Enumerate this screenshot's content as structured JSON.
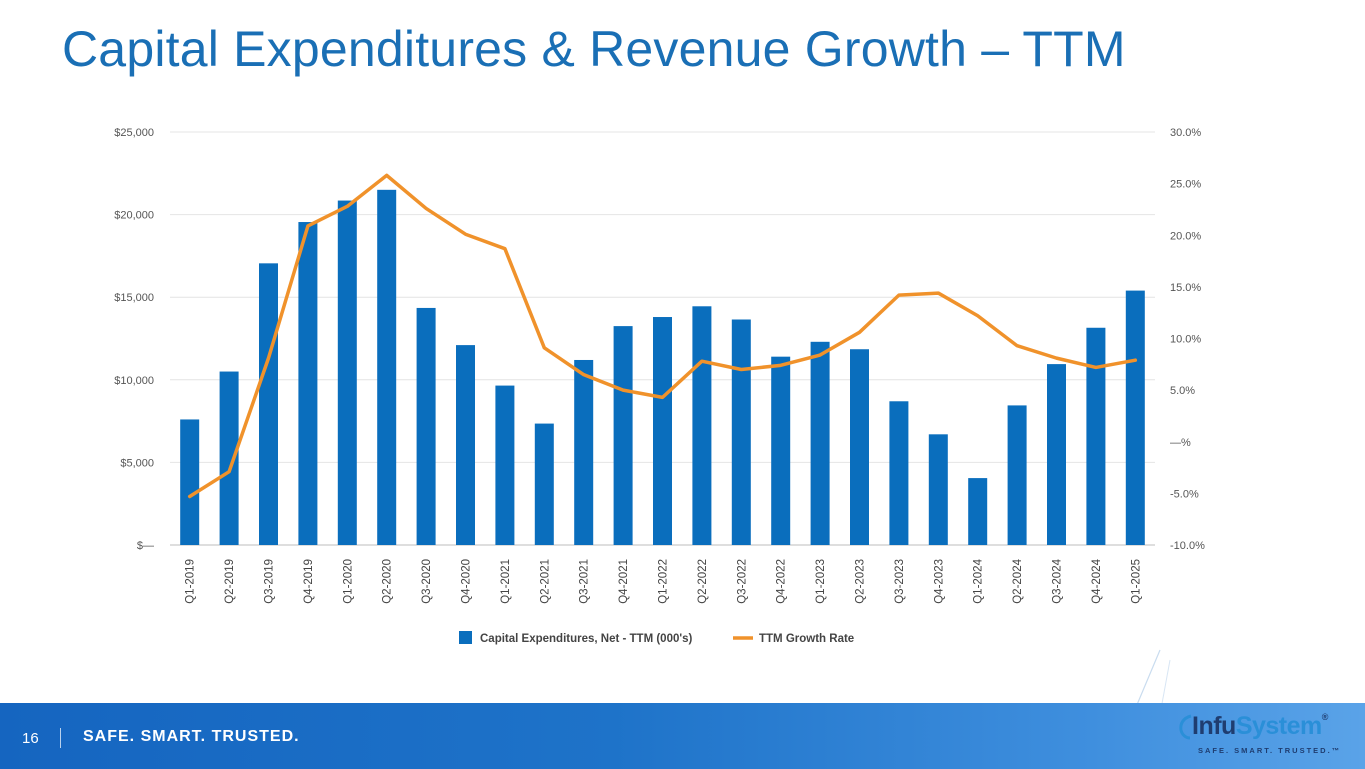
{
  "slide": {
    "title": "Capital Expenditures & Revenue Growth – TTM",
    "page_number": "16",
    "tagline": "SAFE. SMART. TRUSTED.",
    "logo_text_part1": "Infu",
    "logo_text_part2": "System",
    "logo_trademark": "®",
    "logo_subtitle": "SAFE. SMART. TRUSTED.™"
  },
  "colors": {
    "bar": "#0a6ebd",
    "line": "#f0922b",
    "title": "#1a6fb5",
    "footer": "#1565c0"
  },
  "chart_data": {
    "type": "bar",
    "title": "",
    "categories": [
      "Q1-2019",
      "Q2-2019",
      "Q3-2019",
      "Q4-2019",
      "Q1-2020",
      "Q2-2020",
      "Q3-2020",
      "Q4-2020",
      "Q1-2021",
      "Q2-2021",
      "Q3-2021",
      "Q4-2021",
      "Q1-2022",
      "Q2-2022",
      "Q3-2022",
      "Q4-2022",
      "Q1-2023",
      "Q2-2023",
      "Q3-2023",
      "Q4-2023",
      "Q1-2024",
      "Q2-2024",
      "Q3-2024",
      "Q4-2024",
      "Q1-2025"
    ],
    "series": [
      {
        "name": "Capital Expenditures, Net - TTM (000's)",
        "type": "bar",
        "axis": "left",
        "values": [
          7600,
          10500,
          17050,
          19550,
          20850,
          21500,
          14350,
          12100,
          9650,
          7350,
          11200,
          13250,
          13800,
          14450,
          13650,
          11400,
          12300,
          11850,
          8700,
          6700,
          4050,
          8450,
          10950,
          13150,
          15400
        ]
      },
      {
        "name": "TTM Growth Rate",
        "type": "line",
        "axis": "right",
        "values": [
          -5.3,
          -2.9,
          8.1,
          20.9,
          22.8,
          25.8,
          22.6,
          20.1,
          18.7,
          9.1,
          6.5,
          5.0,
          4.3,
          7.8,
          7.0,
          7.4,
          8.4,
          10.6,
          14.2,
          14.4,
          12.2,
          9.3,
          8.1,
          7.2,
          7.9
        ]
      }
    ],
    "y_left": {
      "min": 0,
      "max": 25000,
      "step": 5000,
      "tick_labels": [
        "$—",
        "$5,000",
        "$10,000",
        "$15,000",
        "$20,000",
        "$25,000"
      ]
    },
    "y_right": {
      "min": -10,
      "max": 30,
      "step": 5,
      "tick_labels": [
        "-10.0%",
        "-5.0%",
        "—%",
        "5.0%",
        "10.0%",
        "15.0%",
        "20.0%",
        "25.0%",
        "30.0%"
      ]
    },
    "grid": true,
    "legend_position": "bottom-center"
  }
}
